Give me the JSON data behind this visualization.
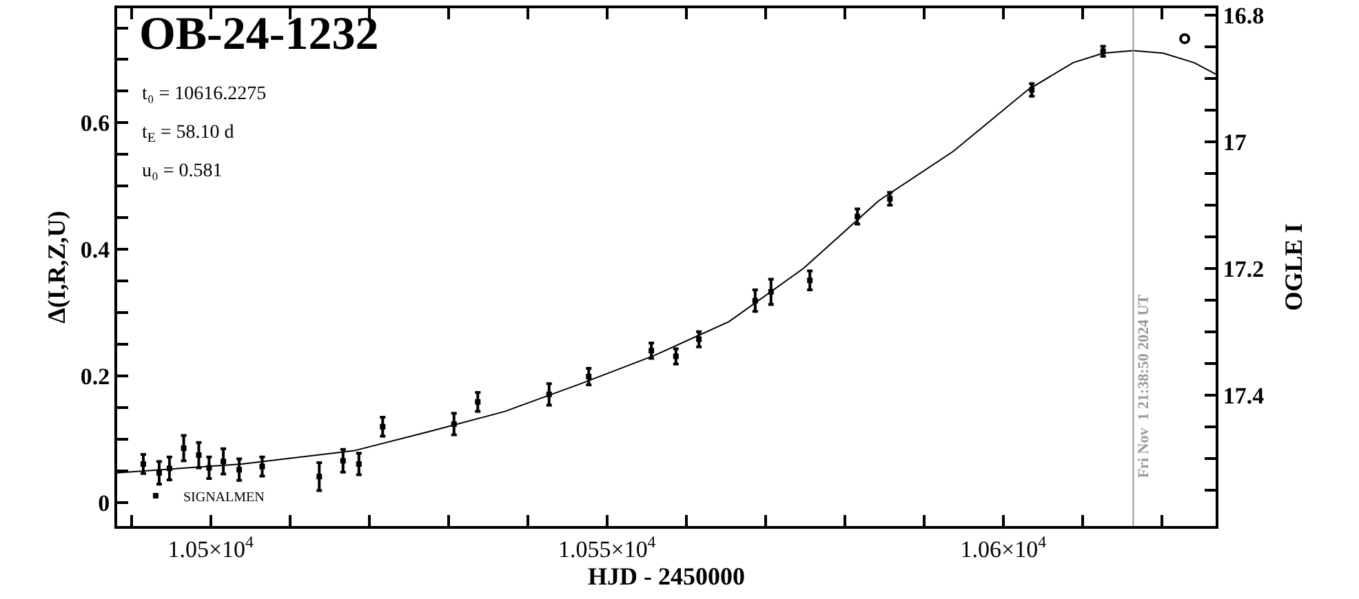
{
  "chart_data": {
    "type": "scatter",
    "title": "OB-24-1232",
    "xlabel": "HJD - 2450000",
    "ylabel": "Δ(I,R,Z,U)",
    "y2label": "OGLE I",
    "annotations": [
      "t₀ = 10616.2275",
      "t$_{E}$ = 58.10 d",
      "u₀ = 0.581",
      {
        "text": "Fri Nov  1 21:38:50 2024 UT",
        "x": 10616.4,
        "y": 0.185
      }
    ],
    "series": [
      {
        "name": "SIGNALMEN",
        "color": "#000000",
        "marker": "square",
        "x": [
          10491.5,
          10493.5,
          10494.8,
          10496.6,
          10498.5,
          10499.8,
          10501.6,
          10503.6,
          10506.5,
          10513.7,
          10516.7,
          10518.7,
          10521.7,
          10530.7,
          10533.7,
          10542.7,
          10547.7,
          10555.6,
          10558.7,
          10561.6,
          10568.7,
          10570.7,
          10575.6,
          10581.6,
          10585.7,
          10603.6,
          10612.6
        ],
        "values": [
          0.061,
          0.047,
          0.054,
          0.086,
          0.075,
          0.055,
          0.065,
          0.052,
          0.057,
          0.041,
          0.066,
          0.061,
          0.12,
          0.124,
          0.159,
          0.171,
          0.199,
          0.24,
          0.231,
          0.258,
          0.319,
          0.333,
          0.351,
          0.452,
          0.48,
          0.652,
          0.713
        ],
        "errors": [
          0.015,
          0.018,
          0.018,
          0.02,
          0.02,
          0.017,
          0.02,
          0.017,
          0.015,
          0.022,
          0.018,
          0.017,
          0.015,
          0.017,
          0.015,
          0.017,
          0.013,
          0.012,
          0.012,
          0.012,
          0.017,
          0.02,
          0.015,
          0.012,
          0.01,
          0.01,
          0.008
        ]
      },
      {
        "axis": "y2",
        "color": "#000000",
        "marker": "circle",
        "x": [
          10622.9
        ],
        "values": [
          16.837
        ]
      },
      {
        "type": "line",
        "color": "#000000",
        "marker": "none",
        "x": [
          10488.2,
          10503.9,
          10518.1,
          10527.5,
          10537.1,
          10546.5,
          10555.9,
          10565.4,
          10574.8,
          10584.3,
          10593.7,
          10603.1,
          10608.8,
          10612.6,
          10616.4,
          10620.2,
          10624.1,
          10626.8
        ],
        "values": [
          0.047,
          0.061,
          0.082,
          0.112,
          0.144,
          0.187,
          0.232,
          0.286,
          0.37,
          0.477,
          0.555,
          0.652,
          0.695,
          0.71,
          0.714,
          0.71,
          0.695,
          0.677
        ]
      }
    ],
    "xlim": [
      10488.2,
      10626.8
    ],
    "xticks": [
      {
        "value": 10490,
        "label": null
      },
      {
        "value": 10500,
        "label": "1.05×10$^{4}$"
      },
      {
        "value": 10510,
        "label": null
      },
      {
        "value": 10520,
        "label": null
      },
      {
        "value": 10530,
        "label": null
      },
      {
        "value": 10540,
        "label": null
      },
      {
        "value": 10550,
        "label": "1.055×10$^{4}$"
      },
      {
        "value": 10560,
        "label": null
      },
      {
        "value": 10570,
        "label": null
      },
      {
        "value": 10580,
        "label": null
      },
      {
        "value": 10590,
        "label": null
      },
      {
        "value": 10600,
        "label": "1.06×10$^{4}$"
      },
      {
        "value": 10610,
        "label": null
      },
      {
        "value": 10620,
        "label": null
      }
    ],
    "ylim": [
      -0.037,
      0.781
    ],
    "yticks": [
      0,
      {
        "value": 0.05,
        "label": null
      },
      0.2,
      {
        "value": 0.1,
        "label": null
      },
      {
        "value": 0.15,
        "label": null
      },
      {
        "value": 0.25,
        "label": null
      },
      {
        "value": 0.3,
        "label": null
      },
      {
        "value": 0.35,
        "label": null
      },
      0.4,
      {
        "value": 0.45,
        "label": null
      },
      {
        "value": 0.5,
        "label": null
      },
      {
        "value": 0.55,
        "label": null
      },
      0.6,
      {
        "value": 0.65,
        "label": null
      },
      {
        "value": 0.7,
        "label": null
      },
      {
        "value": 0.75,
        "label": null
      }
    ],
    "y2lim": [
      17.606,
      16.789
    ],
    "y2ticks": [
      16.8,
      {
        "value": 16.85,
        "label": null
      },
      {
        "value": 16.9,
        "label": null
      },
      {
        "value": 16.95,
        "label": null
      },
      17,
      {
        "value": 17.05,
        "label": null
      },
      {
        "value": 17.1,
        "label": null
      },
      {
        "value": 17.15,
        "label": null
      },
      17.2,
      {
        "value": 17.25,
        "label": null
      },
      {
        "value": 17.3,
        "label": null
      },
      {
        "value": 17.35,
        "label": null
      },
      17.4,
      {
        "value": 17.45,
        "label": null
      },
      {
        "value": 17.5,
        "label": null
      },
      {
        "value": 17.55,
        "label": null
      }
    ],
    "ref_lines": [
      {
        "axis": "x",
        "value": 10616.4,
        "color": "#999999"
      }
    ],
    "legend": "bottom left"
  }
}
